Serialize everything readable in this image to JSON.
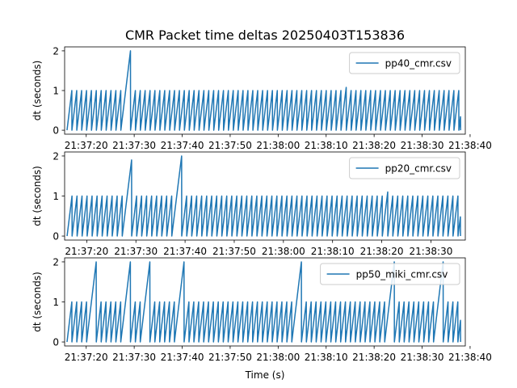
{
  "title": "CMR Packet time deltas 20250403T153836",
  "xlabel": "Time (s)",
  "chart_data": [
    {
      "type": "line",
      "ylabel": "dt (seconds)",
      "legend": "pp40_cmr.csv",
      "legend_position": "upper right",
      "color": "#1f77b4",
      "xlim": [
        "21:37:15.5",
        "21:38:39"
      ],
      "ylim": [
        -0.1,
        2.1
      ],
      "yticks": [
        0,
        1,
        2
      ],
      "xticks": [
        "21:37:20",
        "21:37:30",
        "21:37:40",
        "21:37:50",
        "21:38:00",
        "21:38:10",
        "21:38:20",
        "21:38:30",
        "21:38:40"
      ],
      "start": "21:37:16",
      "end": "21:38:38",
      "spikes": [
        {
          "at": "21:37:29",
          "value": 2.0
        },
        {
          "at": "21:38:14",
          "value": 1.08
        }
      ]
    },
    {
      "type": "line",
      "ylabel": "dt (seconds)",
      "legend": "pp20_cmr.csv",
      "legend_position": "upper right",
      "color": "#1f77b4",
      "xlim": [
        "21:37:15.5",
        "21:38:37"
      ],
      "ylim": [
        -0.1,
        2.1
      ],
      "yticks": [
        0,
        1,
        2
      ],
      "xticks": [
        "21:37:20",
        "21:37:30",
        "21:37:40",
        "21:37:50",
        "21:38:00",
        "21:38:10",
        "21:38:20",
        "21:38:30"
      ],
      "start": "21:37:16",
      "end": "21:38:36",
      "spikes": [
        {
          "at": "21:37:29",
          "value": 1.9
        },
        {
          "at": "21:37:39",
          "value": 2.0
        },
        {
          "at": "21:38:21",
          "value": 1.1
        }
      ]
    },
    {
      "type": "line",
      "ylabel": "dt (seconds)",
      "legend": "pp50_miki_cmr.csv",
      "legend_position": "upper right",
      "color": "#1f77b4",
      "xlim": [
        "21:37:15.5",
        "21:38:39"
      ],
      "ylim": [
        -0.1,
        2.1
      ],
      "yticks": [
        0,
        1,
        2
      ],
      "xticks": [
        "21:37:20",
        "21:37:30",
        "21:37:40",
        "21:37:50",
        "21:38:00",
        "21:38:10",
        "21:38:20",
        "21:38:30",
        "21:38:40"
      ],
      "start": "21:37:16",
      "end": "21:38:38",
      "spikes": [
        {
          "at": "21:37:22",
          "value": 2.0
        },
        {
          "at": "21:37:29",
          "value": 2.0
        },
        {
          "at": "21:37:33",
          "value": 2.0
        },
        {
          "at": "21:37:40",
          "value": 2.0
        },
        {
          "at": "21:38:04",
          "value": 2.0
        },
        {
          "at": "21:38:24",
          "value": 2.0
        },
        {
          "at": "21:38:34",
          "value": 2.0
        }
      ]
    }
  ]
}
